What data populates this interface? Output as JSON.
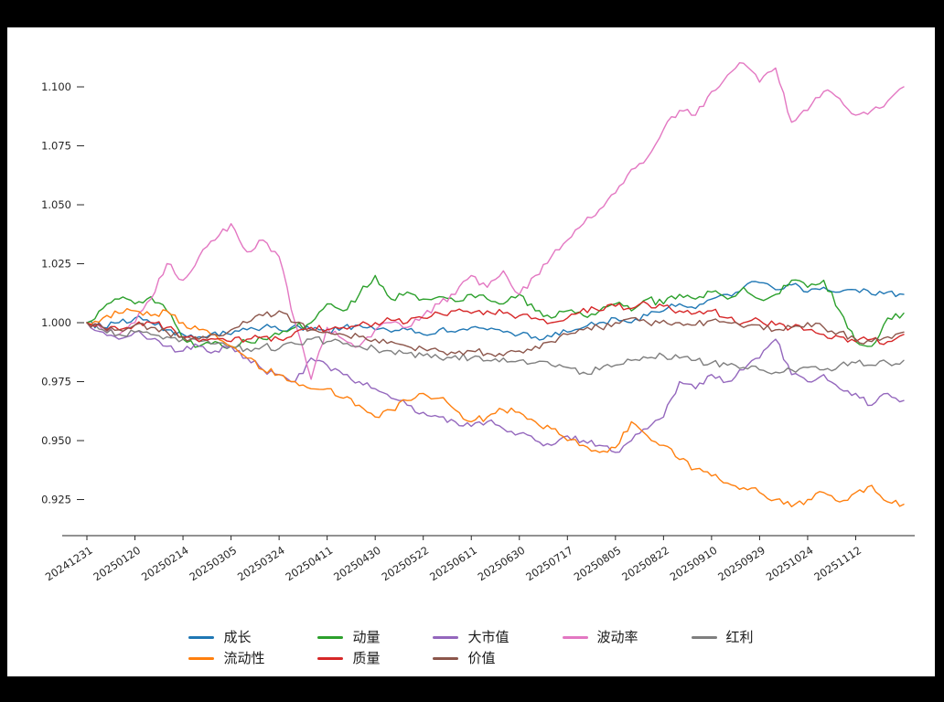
{
  "chart_data": {
    "type": "line",
    "title": "",
    "xlabel": "",
    "ylabel": "",
    "grid": false,
    "legend_position": "bottom",
    "n_points": 52,
    "ylim": [
      0.91,
      1.115
    ],
    "y_ticks": [
      0.925,
      0.95,
      0.975,
      1.0,
      1.025,
      1.05,
      1.075,
      1.1
    ],
    "y_tick_labels": [
      "0.925",
      "0.950",
      "0.975",
      "1.000",
      "1.025",
      "1.050",
      "1.075",
      "1.100"
    ],
    "x_tick_labels": [
      "20241231",
      "20250120",
      "20250214",
      "20250305",
      "20250324",
      "20250411",
      "20250430",
      "20250522",
      "20250611",
      "20250630",
      "20250717",
      "20250805",
      "20250822",
      "20250910",
      "20250929",
      "20251024",
      "20251112"
    ],
    "x_tick_indices": [
      0,
      3,
      6,
      9,
      12,
      15,
      18,
      21,
      24,
      27,
      30,
      33,
      36,
      39,
      42,
      45,
      48
    ],
    "series": [
      {
        "name": "成长",
        "color": "#1f77b4",
        "values": [
          1.0,
          0.998,
          1.0,
          1.002,
          1.0,
          0.997,
          0.995,
          0.994,
          0.996,
          0.995,
          0.997,
          0.998,
          0.997,
          0.999,
          0.997,
          0.996,
          0.998,
          0.999,
          0.997,
          0.996,
          0.997,
          0.995,
          0.997,
          0.996,
          0.998,
          0.997,
          0.996,
          0.995,
          0.994,
          0.994,
          0.996,
          0.998,
          1.0,
          1.002,
          1.0,
          1.003,
          1.005,
          1.008,
          1.006,
          1.01,
          1.012,
          1.015,
          1.017,
          1.014,
          1.016,
          1.013,
          1.015,
          1.013,
          1.014,
          1.012,
          1.013,
          1.012
        ]
      },
      {
        "name": "动量",
        "color": "#2ca02c",
        "values": [
          1.0,
          1.006,
          1.01,
          1.008,
          1.011,
          1.005,
          0.993,
          0.99,
          0.992,
          0.99,
          0.992,
          0.993,
          0.995,
          0.998,
          1.0,
          1.008,
          1.005,
          1.012,
          1.02,
          1.01,
          1.013,
          1.01,
          1.011,
          1.009,
          1.012,
          1.01,
          1.008,
          1.012,
          1.005,
          1.002,
          1.005,
          1.003,
          1.005,
          1.008,
          1.005,
          1.01,
          1.008,
          1.012,
          1.01,
          1.013,
          1.01,
          1.015,
          1.01,
          1.012,
          1.018,
          1.015,
          1.018,
          1.005,
          0.992,
          0.99,
          1.002,
          1.004
        ]
      },
      {
        "name": "大市值",
        "color": "#9467bd",
        "values": [
          1.0,
          0.996,
          0.993,
          0.996,
          0.993,
          0.99,
          0.988,
          0.99,
          0.988,
          0.99,
          0.985,
          0.98,
          0.978,
          0.975,
          0.985,
          0.982,
          0.978,
          0.975,
          0.972,
          0.968,
          0.965,
          0.962,
          0.96,
          0.958,
          0.956,
          0.958,
          0.955,
          0.953,
          0.95,
          0.948,
          0.952,
          0.95,
          0.948,
          0.945,
          0.95,
          0.955,
          0.96,
          0.975,
          0.972,
          0.978,
          0.975,
          0.98,
          0.985,
          0.993,
          0.978,
          0.975,
          0.978,
          0.972,
          0.97,
          0.965,
          0.97,
          0.967
        ]
      },
      {
        "name": "波动率",
        "color": "#e377c2",
        "values": [
          1.0,
          0.997,
          0.995,
          1.0,
          1.01,
          1.025,
          1.018,
          1.028,
          1.035,
          1.042,
          1.03,
          1.035,
          1.028,
          1.0,
          0.976,
          0.998,
          0.993,
          0.99,
          0.997,
          1.0,
          0.998,
          1.003,
          1.008,
          1.012,
          1.02,
          1.015,
          1.022,
          1.012,
          1.02,
          1.028,
          1.035,
          1.042,
          1.048,
          1.055,
          1.065,
          1.07,
          1.082,
          1.09,
          1.088,
          1.098,
          1.105,
          1.11,
          1.102,
          1.108,
          1.085,
          1.09,
          1.098,
          1.095,
          1.088,
          1.09,
          1.094,
          1.1
        ]
      },
      {
        "name": "红利",
        "color": "#7f7f7f",
        "values": [
          1.0,
          0.997,
          0.995,
          0.996,
          0.995,
          0.994,
          0.993,
          0.992,
          0.991,
          0.99,
          0.989,
          0.99,
          0.989,
          0.991,
          0.993,
          0.992,
          0.991,
          0.99,
          0.989,
          0.988,
          0.987,
          0.986,
          0.985,
          0.986,
          0.985,
          0.984,
          0.985,
          0.984,
          0.983,
          0.982,
          0.981,
          0.979,
          0.98,
          0.982,
          0.984,
          0.985,
          0.986,
          0.985,
          0.984,
          0.983,
          0.982,
          0.981,
          0.98,
          0.979,
          0.98,
          0.981,
          0.98,
          0.982,
          0.983,
          0.982,
          0.983,
          0.984
        ]
      },
      {
        "name": "流动性",
        "color": "#ff7f0e",
        "values": [
          1.0,
          1.002,
          1.004,
          1.005,
          1.003,
          1.005,
          1.0,
          0.997,
          0.995,
          0.99,
          0.985,
          0.98,
          0.978,
          0.975,
          0.972,
          0.972,
          0.968,
          0.965,
          0.96,
          0.963,
          0.967,
          0.97,
          0.968,
          0.963,
          0.958,
          0.96,
          0.963,
          0.962,
          0.958,
          0.955,
          0.95,
          0.948,
          0.945,
          0.947,
          0.958,
          0.952,
          0.948,
          0.942,
          0.938,
          0.935,
          0.932,
          0.93,
          0.928,
          0.925,
          0.922,
          0.925,
          0.928,
          0.924,
          0.928,
          0.931,
          0.924,
          0.923
        ]
      },
      {
        "name": "质量",
        "color": "#d62728",
        "values": [
          1.0,
          0.998,
          0.997,
          0.999,
          1.0,
          0.998,
          0.994,
          0.992,
          0.993,
          0.992,
          0.993,
          0.994,
          0.993,
          0.996,
          0.998,
          0.997,
          0.998,
          0.999,
          1.0,
          1.001,
          1.0,
          1.002,
          1.004,
          1.005,
          1.004,
          1.005,
          1.004,
          1.003,
          1.002,
          1.0,
          1.002,
          1.006,
          1.005,
          1.007,
          1.006,
          1.008,
          1.007,
          1.005,
          1.004,
          1.005,
          1.002,
          1.0,
          1.001,
          0.999,
          0.998,
          0.997,
          0.995,
          0.994,
          0.992,
          0.993,
          0.992,
          0.995
        ]
      },
      {
        "name": "价值",
        "color": "#8c564b",
        "values": [
          1.0,
          0.998,
          0.997,
          0.999,
          0.998,
          0.996,
          0.994,
          0.993,
          0.995,
          0.997,
          1.0,
          1.003,
          1.005,
          1.0,
          0.997,
          0.996,
          0.995,
          0.994,
          0.993,
          0.992,
          0.99,
          0.989,
          0.988,
          0.987,
          0.988,
          0.987,
          0.986,
          0.988,
          0.99,
          0.992,
          0.995,
          0.997,
          0.998,
          1.0,
          1.002,
          1.0,
          1.001,
          1.0,
          0.999,
          1.001,
          1.0,
          0.998,
          0.999,
          0.997,
          0.998,
          1.0,
          0.998,
          0.996,
          0.993,
          0.992,
          0.994,
          0.996
        ]
      }
    ],
    "legend_labels": [
      "成长",
      "动量",
      "大市值",
      "波动率",
      "红利",
      "流动性",
      "质量",
      "价值"
    ]
  },
  "colors": {
    "page_background": "#000000",
    "panel_background": "#ffffff",
    "axis_line": "#262626",
    "tick_text": "#262626"
  }
}
